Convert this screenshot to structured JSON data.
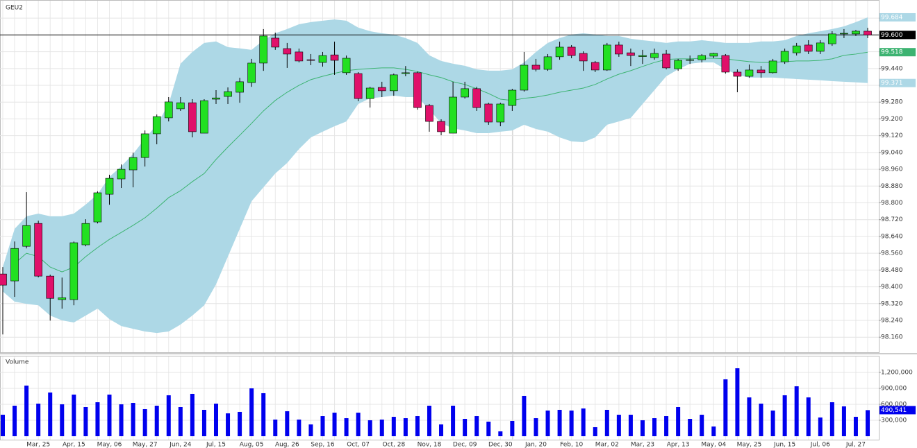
{
  "chart_data": [
    {
      "type": "candlestick",
      "title": "GEU2",
      "open": [
        98.461,
        98.428,
        98.593,
        98.702,
        98.451,
        98.339,
        98.339,
        98.6,
        98.709,
        98.841,
        98.914,
        98.957,
        99.016,
        99.129,
        99.205,
        99.248,
        99.277,
        99.132,
        99.294,
        99.307,
        99.327,
        99.373,
        99.466,
        99.585,
        99.535,
        99.519,
        99.482,
        99.469,
        99.505,
        99.42,
        99.416,
        99.297,
        99.35,
        99.334,
        99.416,
        99.42,
        99.264,
        99.188,
        99.132,
        99.304,
        99.344,
        99.271,
        99.185,
        99.264,
        99.337,
        99.456,
        99.436,
        99.496,
        99.542,
        99.512,
        99.469,
        99.433,
        99.552,
        99.515,
        99.497,
        99.492,
        99.509,
        99.439,
        99.479,
        99.482,
        99.499,
        99.502,
        99.423,
        99.403,
        99.433,
        99.42,
        99.472,
        99.515,
        99.552,
        99.522,
        99.558,
        99.605,
        99.605,
        99.618
      ],
      "high": [
        98.494,
        98.616,
        98.851,
        98.715,
        98.458,
        98.444,
        98.616,
        98.722,
        98.855,
        98.934,
        98.983,
        99.039,
        99.145,
        99.221,
        99.304,
        99.304,
        99.294,
        99.294,
        99.337,
        99.35,
        99.396,
        99.486,
        99.628,
        99.611,
        99.562,
        99.535,
        99.509,
        99.519,
        99.568,
        99.502,
        99.423,
        99.353,
        99.377,
        99.416,
        99.452,
        99.426,
        99.271,
        99.198,
        99.377,
        99.377,
        99.353,
        99.277,
        99.277,
        99.343,
        99.519,
        99.486,
        99.509,
        99.568,
        99.552,
        99.522,
        99.476,
        99.562,
        99.568,
        99.535,
        99.529,
        99.535,
        99.529,
        99.486,
        99.502,
        99.509,
        99.515,
        99.509,
        99.436,
        99.459,
        99.452,
        99.486,
        99.535,
        99.562,
        99.575,
        99.575,
        99.618,
        99.628,
        99.624,
        99.634
      ],
      "low": [
        98.173,
        98.352,
        98.583,
        98.445,
        98.239,
        98.296,
        98.312,
        98.593,
        98.702,
        98.791,
        98.871,
        98.874,
        98.973,
        99.079,
        99.188,
        99.238,
        99.112,
        99.132,
        99.271,
        99.271,
        99.277,
        99.353,
        99.429,
        99.529,
        99.443,
        99.469,
        99.456,
        99.449,
        99.41,
        99.41,
        99.284,
        99.254,
        99.304,
        99.31,
        99.403,
        99.244,
        99.139,
        99.122,
        99.132,
        99.297,
        99.238,
        99.172,
        99.165,
        99.238,
        99.33,
        99.426,
        99.429,
        99.482,
        99.489,
        99.429,
        99.423,
        99.429,
        99.496,
        99.452,
        99.462,
        99.482,
        99.436,
        99.429,
        99.462,
        99.469,
        99.489,
        99.416,
        99.327,
        99.396,
        99.396,
        99.416,
        99.462,
        99.502,
        99.509,
        99.509,
        99.548,
        99.585,
        99.595,
        99.585
      ],
      "close": [
        98.408,
        98.583,
        98.692,
        98.451,
        98.345,
        98.348,
        98.61,
        98.702,
        98.848,
        98.917,
        98.96,
        99.016,
        99.129,
        99.211,
        99.281,
        99.277,
        99.139,
        99.287,
        99.3,
        99.33,
        99.377,
        99.466,
        99.595,
        99.542,
        99.509,
        99.476,
        99.479,
        99.502,
        99.479,
        99.489,
        99.297,
        99.347,
        99.334,
        99.41,
        99.42,
        99.254,
        99.188,
        99.139,
        99.304,
        99.344,
        99.254,
        99.185,
        99.271,
        99.337,
        99.456,
        99.436,
        99.496,
        99.542,
        99.502,
        99.476,
        99.433,
        99.552,
        99.509,
        99.502,
        99.502,
        99.512,
        99.443,
        99.479,
        99.482,
        99.502,
        99.512,
        99.423,
        99.403,
        99.433,
        99.42,
        99.476,
        99.522,
        99.548,
        99.522,
        99.562,
        99.605,
        99.608,
        99.618,
        99.6
      ],
      "upper_band": [
        98.494,
        98.676,
        98.736,
        98.749,
        98.736,
        98.736,
        98.749,
        98.792,
        98.841,
        98.924,
        98.974,
        99.033,
        99.106,
        99.172,
        99.271,
        99.463,
        99.519,
        99.562,
        99.569,
        99.542,
        99.536,
        99.529,
        99.575,
        99.608,
        99.628,
        99.651,
        99.661,
        99.668,
        99.674,
        99.668,
        99.635,
        99.618,
        99.608,
        99.602,
        99.585,
        99.562,
        99.503,
        99.476,
        99.463,
        99.453,
        99.436,
        99.43,
        99.43,
        99.436,
        99.469,
        99.519,
        99.562,
        99.585,
        99.602,
        99.608,
        99.602,
        99.595,
        99.595,
        99.582,
        99.575,
        99.569,
        99.562,
        99.569,
        99.569,
        99.575,
        99.569,
        99.562,
        99.562,
        99.562,
        99.569,
        99.569,
        99.575,
        99.595,
        99.608,
        99.618,
        99.628,
        99.641,
        99.661,
        99.684
      ],
      "middle_band": [
        null,
        98.511,
        98.56,
        98.544,
        98.494,
        98.471,
        98.494,
        98.544,
        98.587,
        98.626,
        98.659,
        98.693,
        98.729,
        98.775,
        98.825,
        98.858,
        98.901,
        98.94,
        99.007,
        99.066,
        99.122,
        99.179,
        99.238,
        99.288,
        99.327,
        99.36,
        99.387,
        99.403,
        99.417,
        99.43,
        99.436,
        99.44,
        99.443,
        99.443,
        99.436,
        99.426,
        99.41,
        99.397,
        99.377,
        99.364,
        99.344,
        99.321,
        99.294,
        99.288,
        99.298,
        99.304,
        99.314,
        99.327,
        99.337,
        99.347,
        99.364,
        99.39,
        99.413,
        99.43,
        99.45,
        99.469,
        99.483,
        99.486,
        99.486,
        99.489,
        99.489,
        99.486,
        99.479,
        99.473,
        99.469,
        99.469,
        99.473,
        99.476,
        99.476,
        99.479,
        99.486,
        99.503,
        99.509,
        99.518
      ],
      "lower_band": [
        98.378,
        98.329,
        98.319,
        98.312,
        98.263,
        98.24,
        98.23,
        98.263,
        98.296,
        98.246,
        98.213,
        98.2,
        98.187,
        98.18,
        98.187,
        98.22,
        98.263,
        98.312,
        98.412,
        98.544,
        98.676,
        98.808,
        98.874,
        98.94,
        98.99,
        99.056,
        99.112,
        99.139,
        99.165,
        99.188,
        99.271,
        99.298,
        99.304,
        99.311,
        99.304,
        99.304,
        99.245,
        99.179,
        99.155,
        99.145,
        99.132,
        99.132,
        99.139,
        99.145,
        99.172,
        99.152,
        99.139,
        99.112,
        99.093,
        99.089,
        99.112,
        99.172,
        99.188,
        99.205,
        99.271,
        99.337,
        99.403,
        99.436,
        99.463,
        99.469,
        99.469,
        99.436,
        99.41,
        99.397,
        99.397,
        99.397,
        99.393,
        99.39,
        99.387,
        99.384,
        99.38,
        99.377,
        99.374,
        99.371
      ],
      "last_price_label": "99.600",
      "up_color": "#22e022",
      "down_color": "#e0106a",
      "band_color": "#add8e6",
      "middle_color": "#3cb371",
      "last_price_color": "#000000",
      "ylim": [
        98.088,
        99.75
      ],
      "yticks": [
        {
          "value": 98.16,
          "label": "98.160"
        },
        {
          "value": 98.24,
          "label": "98.240"
        },
        {
          "value": 98.32,
          "label": "98.320"
        },
        {
          "value": 98.4,
          "label": "98.400"
        },
        {
          "value": 98.48,
          "label": "98.480"
        },
        {
          "value": 98.56,
          "label": "98.560"
        },
        {
          "value": 98.64,
          "label": "98.640"
        },
        {
          "value": 98.72,
          "label": "98.720"
        },
        {
          "value": 98.8,
          "label": "98.800"
        },
        {
          "value": 98.88,
          "label": "98.880"
        },
        {
          "value": 98.96,
          "label": "98.960"
        },
        {
          "value": 99.04,
          "label": "99.040"
        },
        {
          "value": 99.12,
          "label": "99.120"
        },
        {
          "value": 99.2,
          "label": "99.200"
        },
        {
          "value": 99.28,
          "label": "99.280"
        },
        {
          "value": 99.36,
          "label": "99.360"
        },
        {
          "value": 99.44,
          "label": "99.440"
        },
        {
          "value": 99.52,
          "label": "99.520"
        },
        {
          "value": 99.6,
          "label": "99.600"
        },
        {
          "value": 99.68,
          "label": "99.680"
        }
      ],
      "grid": true
    },
    {
      "type": "bar",
      "title": "Volume",
      "categories": [
        null,
        null,
        null,
        "Mar, 25",
        null,
        null,
        "Apr, 15",
        null,
        null,
        "May, 06",
        null,
        null,
        "May, 27",
        null,
        null,
        "Jun, 24",
        null,
        null,
        "Jul, 15",
        null,
        null,
        "Aug, 05",
        null,
        null,
        "Aug, 26",
        null,
        null,
        "Sep, 16",
        null,
        null,
        "Oct, 07",
        null,
        null,
        "Oct, 28",
        null,
        null,
        "Nov, 18",
        null,
        null,
        "Dec, 09",
        null,
        null,
        "Dec, 30",
        null,
        null,
        "Jan, 20",
        null,
        null,
        "Feb, 10",
        null,
        null,
        "Mar, 02",
        null,
        null,
        "Mar, 23",
        null,
        null,
        "Apr, 13",
        null,
        null,
        "May, 04",
        null,
        null,
        "May, 25",
        null,
        null,
        "Jun, 15",
        null,
        null,
        "Jul, 06",
        null,
        null,
        "Jul, 27",
        null
      ],
      "values": [
        404000,
        574000,
        952000,
        613000,
        822000,
        600000,
        783000,
        548000,
        639000,
        783000,
        600000,
        626000,
        509000,
        574000,
        770000,
        548000,
        796000,
        496000,
        613000,
        430000,
        457000,
        900000,
        809000,
        313000,
        470000,
        313000,
        222000,
        378000,
        443000,
        339000,
        443000,
        300000,
        313000,
        365000,
        339000,
        378000,
        574000,
        222000,
        574000,
        326000,
        378000,
        274000,
        91000,
        287000,
        757000,
        339000,
        483000,
        496000,
        483000,
        522000,
        170000,
        496000,
        404000,
        404000,
        300000,
        339000,
        378000,
        548000,
        326000,
        404000,
        183000,
        1070000,
        1278000,
        730000,
        613000,
        483000,
        770000,
        939000,
        730000,
        352000,
        639000,
        561000,
        365000,
        490541
      ],
      "last_value_label": "490,541",
      "color": "#0000ee",
      "ylim": [
        -52000,
        1487000
      ],
      "yticks": [
        {
          "value": 300000,
          "label": "300,000"
        },
        {
          "value": 600000,
          "label": "600,000"
        },
        {
          "value": 900000,
          "label": "900,000"
        },
        {
          "value": 1200000,
          "label": "1,200,000"
        }
      ],
      "grid": true
    }
  ]
}
